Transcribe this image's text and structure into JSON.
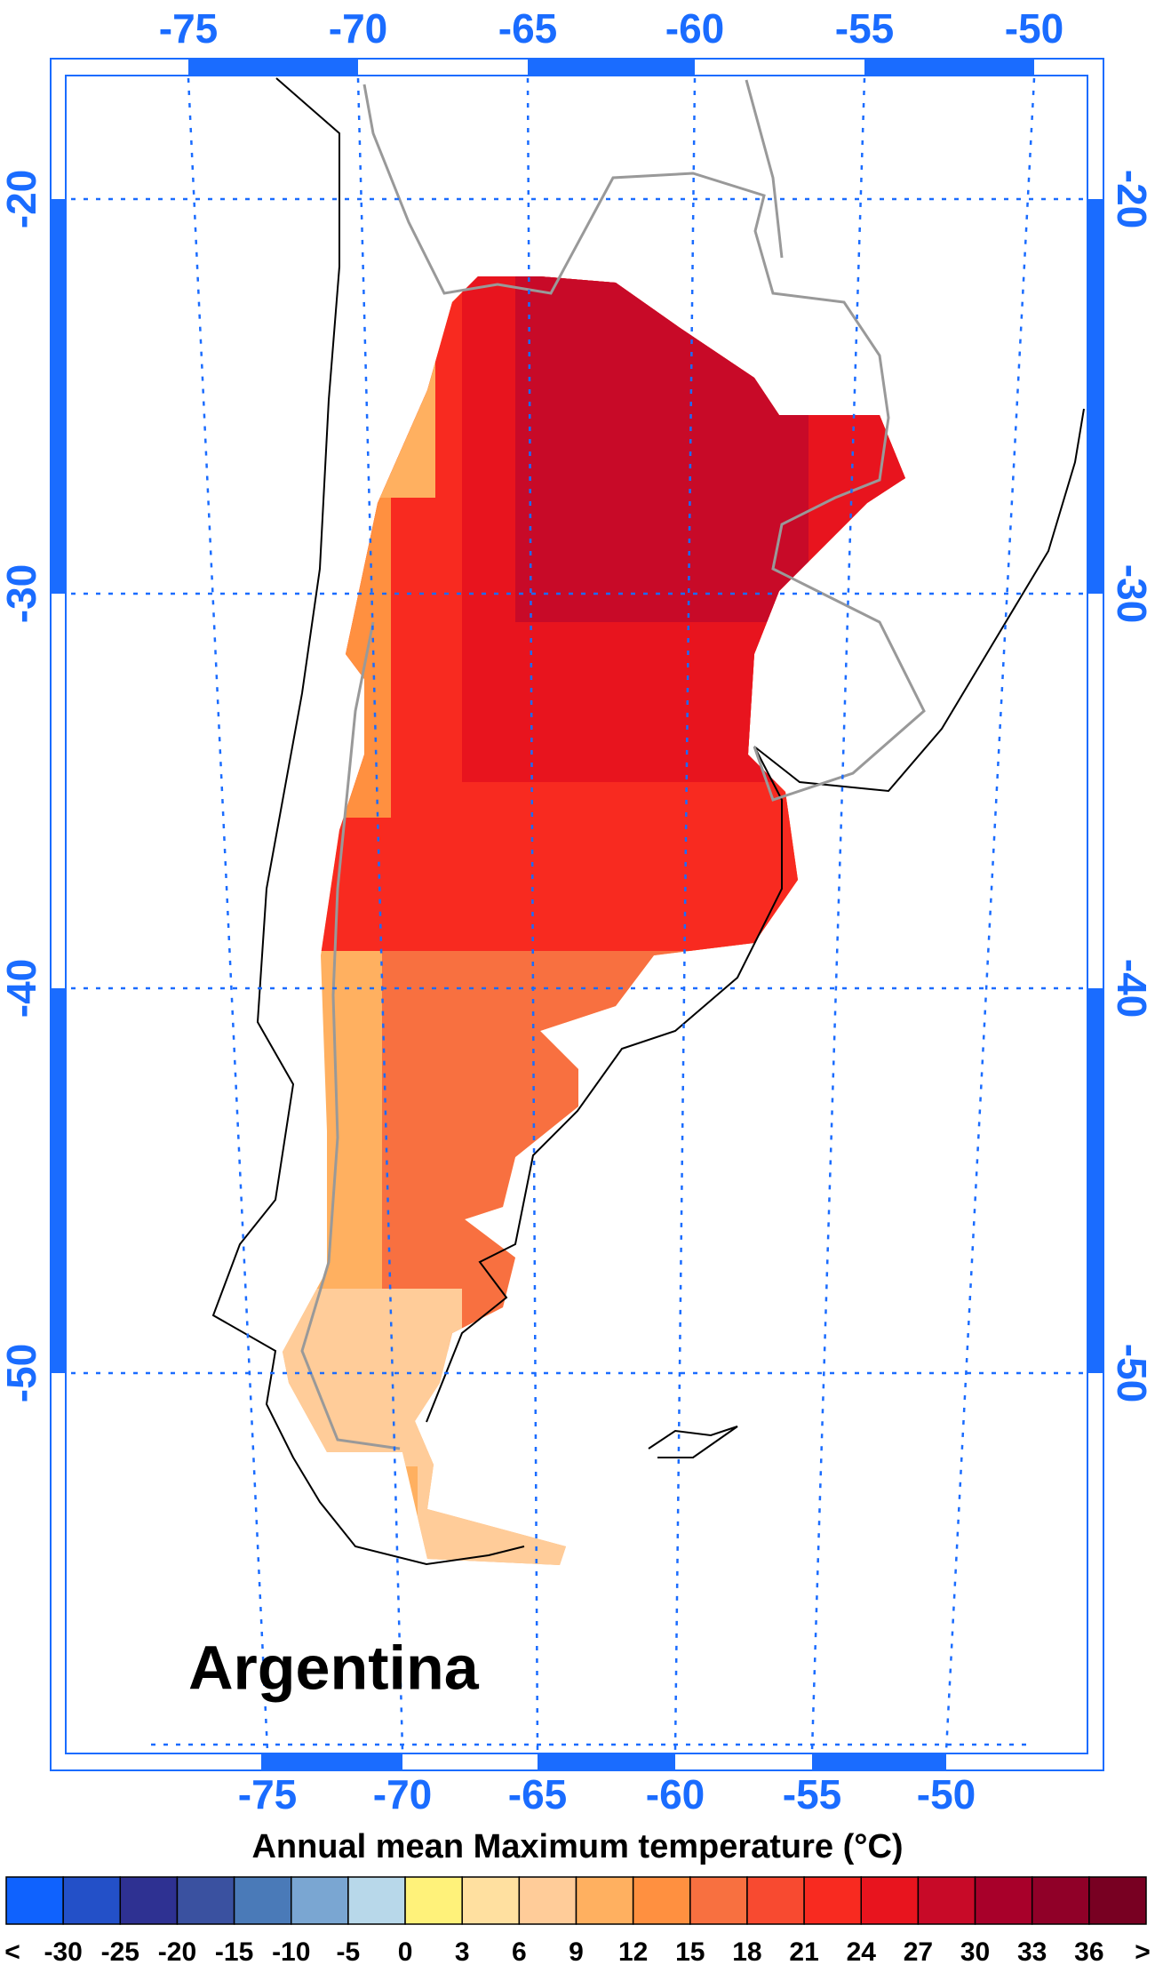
{
  "map": {
    "title": "Argentina",
    "colorbar_title": "Annual mean Maximum temperature (°C)",
    "top_axis_labels": [
      "-75",
      "-70",
      "-65",
      "-60",
      "-55",
      "-50"
    ],
    "bottom_axis_labels": [
      "-75",
      "-70",
      "-65",
      "-60",
      "-55",
      "-50"
    ],
    "left_axis_labels": [
      "-20",
      "-30",
      "-40",
      "-50"
    ],
    "right_axis_labels": [
      "-20",
      "-30",
      "-40",
      "-50"
    ],
    "colorbar": {
      "labels": [
        "<",
        "-30",
        "-25",
        "-20",
        "-15",
        "-10",
        "-5",
        "0",
        "3",
        "6",
        "9",
        "12",
        "15",
        "18",
        "21",
        "24",
        "27",
        "30",
        "33",
        "36",
        ">"
      ],
      "colors": [
        "#0f62fe",
        "#2350c8",
        "#2e3192",
        "#3a51a0",
        "#4a7ab8",
        "#7aa6d2",
        "#b8d8ea",
        "#fff27a",
        "#ffe0a0",
        "#ffcc99",
        "#ffb060",
        "#ff9040",
        "#f87040",
        "#f84a30",
        "#f82a20",
        "#e8141e",
        "#c80a28",
        "#a8002a",
        "#900028",
        "#780022"
      ]
    }
  }
}
